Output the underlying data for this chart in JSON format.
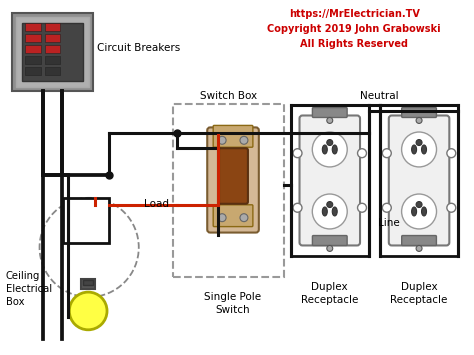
{
  "bg_color": "#ffffff",
  "copyright_text": "https://MrElectrician.TV\nCopyright 2019 John Grabowski\nAll Rights Reserved",
  "copyright_color": "#cc0000",
  "labels": {
    "circuit_breakers": "Circuit Breakers",
    "switch_box": "Switch Box",
    "single_pole_switch": "Single Pole\nSwitch",
    "ceiling_electrical_box": "Ceiling\nElectrical\nBox",
    "duplex_receptacle_1": "Duplex\nReceptacle",
    "duplex_receptacle_2": "Duplex\nReceptacle",
    "neutral": "Neutral",
    "line": "Line",
    "load": "Load"
  },
  "wire_black": "#111111",
  "wire_red": "#cc2200",
  "panel_gray": "#909090",
  "panel_dark": "#666666",
  "panel_inner": "#555555",
  "breaker_red": "#bb2222",
  "breaker_dark": "#333333"
}
